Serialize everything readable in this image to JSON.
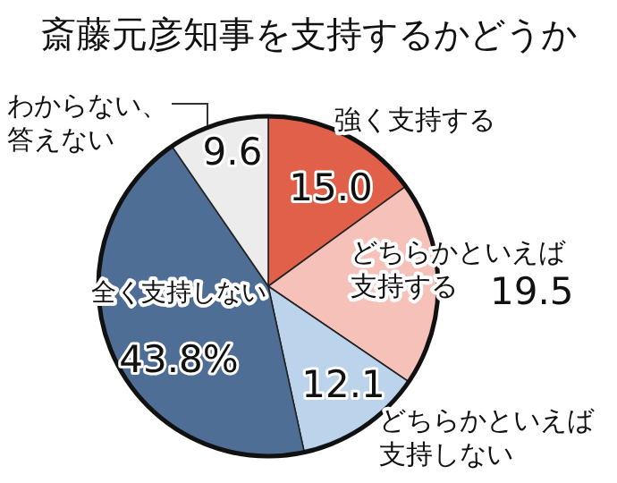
{
  "chart_data": {
    "type": "pie",
    "title": "斎藤元彦知事を支持するかどうか",
    "categories": [
      "強く支持する",
      "どちらかといえば支持する",
      "どちらかといえば支持しない",
      "全く支持しない",
      "わからない、答えない"
    ],
    "values": [
      15.0,
      19.5,
      12.1,
      43.8,
      9.6
    ],
    "value_labels": [
      "15.0",
      "19.5",
      "12.1",
      "43.8%",
      "9.6"
    ],
    "colors": [
      "#e0604a",
      "#f5c1b8",
      "#bcd3ec",
      "#4f6e96",
      "#ececec"
    ]
  }
}
